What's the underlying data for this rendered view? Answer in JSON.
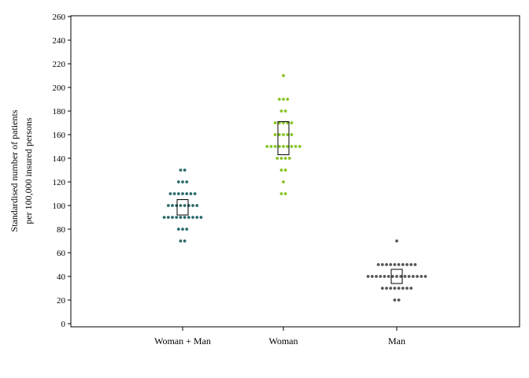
{
  "chart_data": {
    "type": "scatter",
    "subtype": "dot-plot with interquartile boxes",
    "title": "",
    "xlabel": "",
    "ylabel_lines": [
      "Standardised number of patients",
      "per 100,000 insured persons"
    ],
    "ylim": [
      0,
      260
    ],
    "yticks": [
      "0",
      "20",
      "40",
      "60",
      "80",
      "100",
      "120",
      "140",
      "160",
      "180",
      "200",
      "220",
      "240",
      "260"
    ],
    "grid": false,
    "categories": [
      "Woman + Man",
      "Woman",
      "Man"
    ],
    "series": [
      {
        "category": "Woman + Man",
        "color": "#2a6b6b",
        "points": [
          {
            "y": 70,
            "n": 2
          },
          {
            "y": 80,
            "n": 3
          },
          {
            "y": 90,
            "n": 10
          },
          {
            "y": 100,
            "n": 8
          },
          {
            "y": 110,
            "n": 7
          },
          {
            "y": 120,
            "n": 3
          },
          {
            "y": 130,
            "n": 2
          }
        ],
        "box": {
          "q1": 92,
          "q3": 105
        }
      },
      {
        "category": "Woman",
        "color": "#86c322",
        "points": [
          {
            "y": 110,
            "n": 2
          },
          {
            "y": 120,
            "n": 1
          },
          {
            "y": 130,
            "n": 2
          },
          {
            "y": 140,
            "n": 4
          },
          {
            "y": 150,
            "n": 9
          },
          {
            "y": 160,
            "n": 5
          },
          {
            "y": 170,
            "n": 5
          },
          {
            "y": 180,
            "n": 2
          },
          {
            "y": 190,
            "n": 3
          },
          {
            "y": 210,
            "n": 1
          }
        ],
        "box": {
          "q1": 143,
          "q3": 171
        }
      },
      {
        "category": "Man",
        "color": "#555555",
        "points": [
          {
            "y": 20,
            "n": 2
          },
          {
            "y": 30,
            "n": 8
          },
          {
            "y": 40,
            "n": 15
          },
          {
            "y": 50,
            "n": 10
          },
          {
            "y": 70,
            "n": 1
          }
        ],
        "box": {
          "q1": 34,
          "q3": 46
        }
      }
    ]
  }
}
